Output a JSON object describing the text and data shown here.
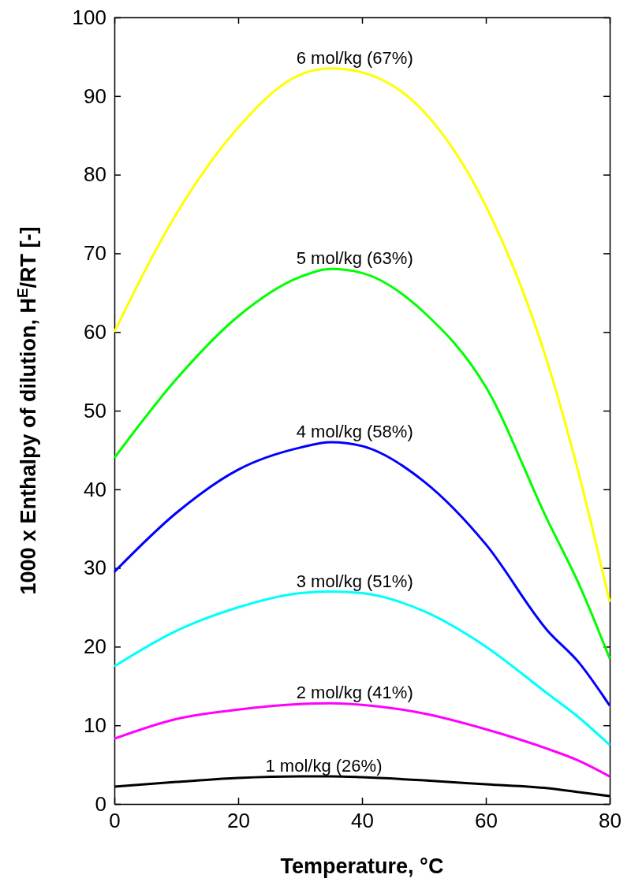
{
  "chart_data": {
    "type": "line",
    "xlabel": "Temperature, °C",
    "ylabel": "1000 x Enthalpy of dilution, H$^{E}$/RT  [-]",
    "x": [
      0,
      10,
      20,
      30,
      35,
      40,
      50,
      60,
      70,
      75,
      80
    ],
    "xlim": [
      0,
      80
    ],
    "xticks": [
      0,
      20,
      40,
      60,
      80
    ],
    "ylim": [
      0,
      100
    ],
    "yticks": [
      0,
      10,
      20,
      30,
      40,
      50,
      60,
      70,
      80,
      90,
      100
    ],
    "grid": false,
    "marker": "none",
    "line_style": "solid",
    "series": [
      {
        "name": "6 mol/kg (67%)",
        "color": "#ffff00",
        "values": [
          60,
          75,
          86,
          92.7,
          93.5,
          93,
          88,
          76,
          56,
          42,
          25.7
        ]
      },
      {
        "name": "5 mol/kg (63%)",
        "color": "#00ff00",
        "values": [
          44,
          54,
          62,
          67,
          68,
          67.5,
          62.5,
          53,
          36,
          28,
          18.5
        ]
      },
      {
        "name": "4 mol/kg (58%)",
        "color": "#0000ff",
        "values": [
          29.5,
          37,
          42.5,
          45.3,
          46,
          45.5,
          41,
          33,
          22,
          18,
          12.5
        ]
      },
      {
        "name": "3 mol/kg (51%)",
        "color": "#00ffff",
        "values": [
          17.5,
          22,
          25,
          26.8,
          27,
          26.8,
          24.5,
          20,
          14,
          11,
          7.5
        ]
      },
      {
        "name": "2 mol/kg (41%)",
        "color": "#ff00ff",
        "values": [
          8.3,
          10.8,
          12,
          12.7,
          12.8,
          12.6,
          11.5,
          9.5,
          7,
          5.5,
          3.5
        ]
      },
      {
        "name": "1 mol/kg (26%)",
        "color": "#000000",
        "values": [
          2.2,
          2.8,
          3.3,
          3.5,
          3.5,
          3.4,
          3,
          2.5,
          2,
          1.5,
          1
        ]
      }
    ]
  }
}
